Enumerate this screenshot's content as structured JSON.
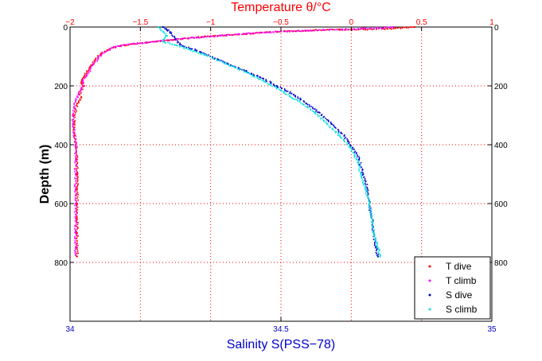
{
  "chart_data": {
    "type": "scatter",
    "title": "Temperature θ/°C",
    "ylabel": "Depth (m)",
    "xlabel": "Salinity S(PSS−78)",
    "top_axis": {
      "label": "Temperature θ/°C",
      "range": [
        -2,
        1
      ],
      "ticks": [
        "−2",
        "−1.5",
        "−1",
        "−0.5",
        "0",
        "0.5",
        "1"
      ],
      "tick_values": [
        -2,
        -1.5,
        -1,
        -0.5,
        0,
        0.5,
        1
      ],
      "color": "#ff0000"
    },
    "bottom_axis": {
      "label": "Salinity S(PSS−78)",
      "range": [
        34,
        35
      ],
      "ticks": [
        "34",
        "34.5",
        "35"
      ],
      "tick_values": [
        34,
        34.5,
        35
      ],
      "color": "#0000cc"
    },
    "depth_axis": {
      "range": [
        0,
        1000
      ],
      "ticks": [
        "0",
        "200",
        "400",
        "600",
        "800"
      ],
      "tick_values": [
        0,
        200,
        400,
        600,
        800
      ],
      "inverted": true
    },
    "grid": true,
    "grid_color": "#ff0000",
    "legend_position": "bottom-right",
    "series": [
      {
        "name": "T dive",
        "color": "#ff0000",
        "axis": "temperature",
        "points": [
          [
            0.45,
            0
          ],
          [
            0.3,
            5
          ],
          [
            0.1,
            8
          ],
          [
            -0.2,
            10
          ],
          [
            -0.5,
            15
          ],
          [
            -0.8,
            25
          ],
          [
            -1.1,
            35
          ],
          [
            -1.3,
            45
          ],
          [
            -1.5,
            55
          ],
          [
            -1.65,
            65
          ],
          [
            -1.72,
            75
          ],
          [
            -1.78,
            90
          ],
          [
            -1.82,
            110
          ],
          [
            -1.85,
            130
          ],
          [
            -1.88,
            150
          ],
          [
            -1.9,
            170
          ],
          [
            -1.92,
            190
          ],
          [
            -1.9,
            200
          ],
          [
            -1.93,
            220
          ],
          [
            -1.92,
            240
          ],
          [
            -1.95,
            260
          ],
          [
            -1.96,
            280
          ],
          [
            -1.97,
            300
          ],
          [
            -1.97,
            330
          ],
          [
            -1.97,
            360
          ],
          [
            -1.96,
            400
          ],
          [
            -1.95,
            450
          ],
          [
            -1.95,
            500
          ],
          [
            -1.95,
            550
          ],
          [
            -1.95,
            600
          ],
          [
            -1.95,
            650
          ],
          [
            -1.95,
            700
          ],
          [
            -1.95,
            750
          ],
          [
            -1.95,
            780
          ]
        ]
      },
      {
        "name": "T climb",
        "color": "#ff00ff",
        "axis": "temperature",
        "points": [
          [
            0.3,
            0
          ],
          [
            0.2,
            3
          ],
          [
            0.05,
            6
          ],
          [
            -0.3,
            12
          ],
          [
            -0.6,
            18
          ],
          [
            -0.9,
            28
          ],
          [
            -1.2,
            40
          ],
          [
            -1.4,
            50
          ],
          [
            -1.6,
            60
          ],
          [
            -1.7,
            70
          ],
          [
            -1.75,
            85
          ],
          [
            -1.8,
            105
          ],
          [
            -1.83,
            125
          ],
          [
            -1.86,
            145
          ],
          [
            -1.88,
            165
          ],
          [
            -1.91,
            185
          ],
          [
            -1.92,
            210
          ],
          [
            -1.94,
            230
          ],
          [
            -1.96,
            250
          ],
          [
            -1.97,
            275
          ],
          [
            -1.98,
            300
          ],
          [
            -1.98,
            330
          ],
          [
            -1.97,
            360
          ],
          [
            -1.96,
            400
          ],
          [
            -1.96,
            450
          ],
          [
            -1.96,
            500
          ],
          [
            -1.96,
            550
          ],
          [
            -1.96,
            600
          ],
          [
            -1.96,
            650
          ],
          [
            -1.96,
            700
          ],
          [
            -1.96,
            750
          ],
          [
            -1.96,
            775
          ]
        ]
      },
      {
        "name": "S dive",
        "color": "#0000cc",
        "axis": "salinity",
        "points": [
          [
            34.22,
            0
          ],
          [
            34.23,
            10
          ],
          [
            34.24,
            20
          ],
          [
            34.25,
            40
          ],
          [
            34.26,
            60
          ],
          [
            34.3,
            80
          ],
          [
            34.35,
            110
          ],
          [
            34.4,
            140
          ],
          [
            34.45,
            170
          ],
          [
            34.49,
            200
          ],
          [
            34.53,
            230
          ],
          [
            34.56,
            260
          ],
          [
            34.59,
            290
          ],
          [
            34.62,
            330
          ],
          [
            34.65,
            370
          ],
          [
            34.67,
            410
          ],
          [
            34.685,
            450
          ],
          [
            34.695,
            500
          ],
          [
            34.705,
            550
          ],
          [
            34.71,
            600
          ],
          [
            34.715,
            650
          ],
          [
            34.72,
            700
          ],
          [
            34.725,
            750
          ],
          [
            34.73,
            780
          ]
        ]
      },
      {
        "name": "S climb",
        "color": "#00e0e0",
        "axis": "salinity",
        "points": [
          [
            34.21,
            0
          ],
          [
            34.22,
            15
          ],
          [
            34.23,
            30
          ],
          [
            34.22,
            50
          ],
          [
            34.27,
            70
          ],
          [
            34.32,
            95
          ],
          [
            34.37,
            125
          ],
          [
            34.42,
            155
          ],
          [
            34.46,
            185
          ],
          [
            34.5,
            215
          ],
          [
            34.54,
            250
          ],
          [
            34.58,
            290
          ],
          [
            34.61,
            330
          ],
          [
            34.64,
            370
          ],
          [
            34.665,
            410
          ],
          [
            34.68,
            450
          ],
          [
            34.69,
            500
          ],
          [
            34.7,
            550
          ],
          [
            34.71,
            600
          ],
          [
            34.715,
            650
          ],
          [
            34.72,
            700
          ],
          [
            34.73,
            750
          ],
          [
            34.735,
            780
          ]
        ]
      }
    ]
  }
}
